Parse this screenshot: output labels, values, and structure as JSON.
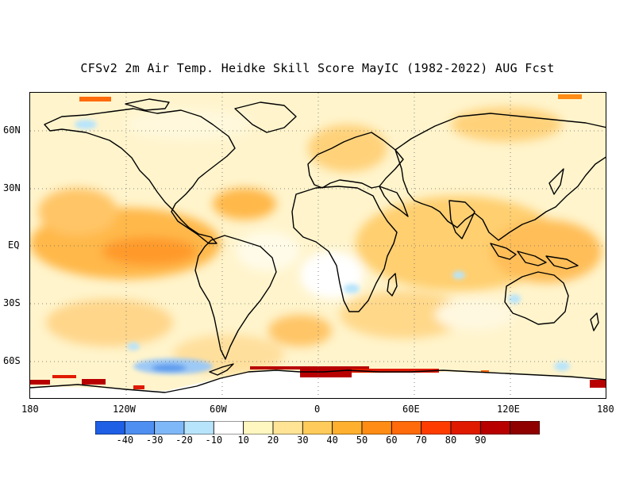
{
  "title": "CFSv2 2m Air Temp. Heidke Skill Score MayIC (1982-2022) AUG Fcst",
  "y_axis_labels": [
    "60N",
    "30N",
    "EQ",
    "30S",
    "60S"
  ],
  "x_axis_labels": [
    "180",
    "120W",
    "60W",
    "0",
    "60E",
    "120E",
    "180"
  ],
  "colorbar": {
    "colors": [
      "#1f5fe6",
      "#4f8ff2",
      "#7fb8f8",
      "#b8e4fb",
      "#ffffff",
      "#fff6c0",
      "#ffe496",
      "#ffcb5a",
      "#ffb02e",
      "#ff8c14",
      "#ff6a0a",
      "#ff3c00",
      "#e01a00",
      "#b80000",
      "#8f0000"
    ],
    "labels": [
      "-40",
      "-30",
      "-20",
      "-10",
      "10",
      "20",
      "30",
      "40",
      "50",
      "60",
      "70",
      "80",
      "90"
    ]
  },
  "map": {
    "projection": "equirectangular",
    "lon_range": [
      -180,
      180
    ],
    "lat_range": [
      -80,
      80
    ],
    "variable": "Heidke Skill Score",
    "gridlines": "dotted"
  }
}
